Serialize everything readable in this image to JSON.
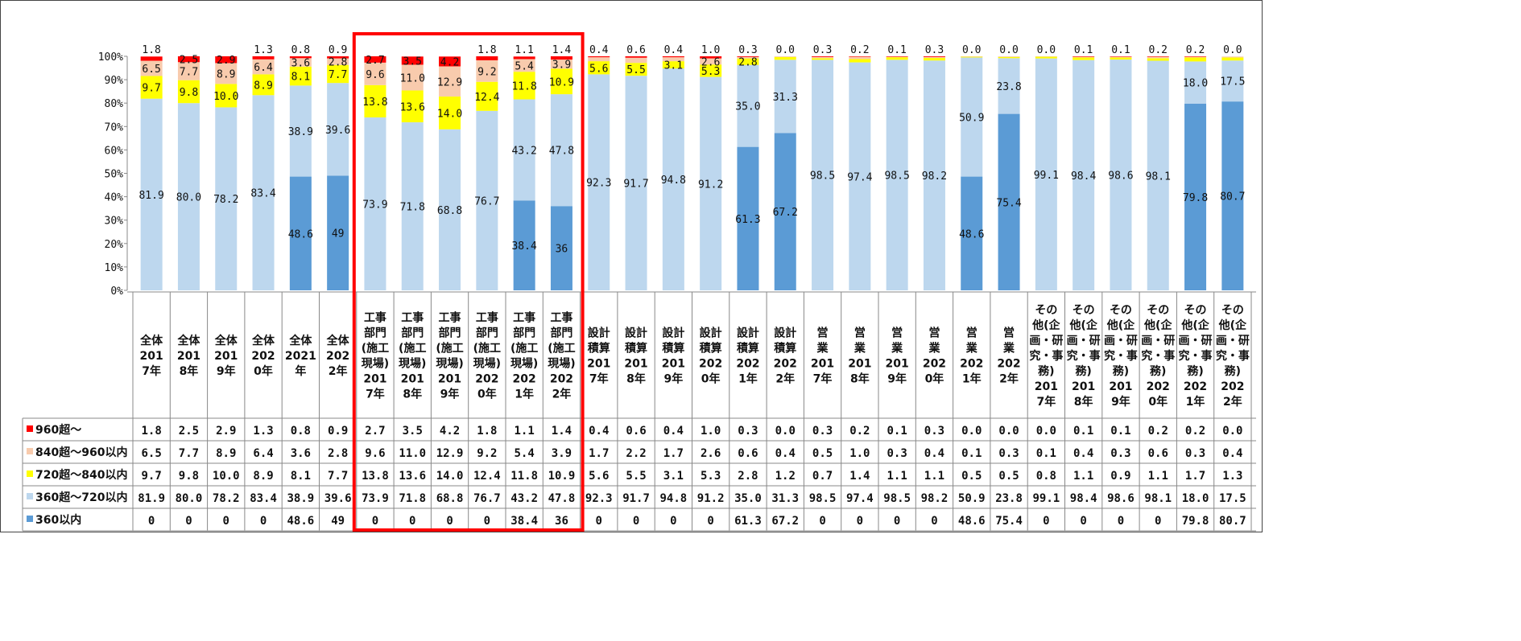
{
  "chart_data": {
    "type": "bar",
    "stacked": true,
    "percent_stacked": true,
    "ylim": [
      0,
      100
    ],
    "y_ticks": [
      "0%",
      "10%",
      "20%",
      "30%",
      "40%",
      "50%",
      "60%",
      "70%",
      "80%",
      "90%",
      "100%"
    ],
    "grid": false,
    "legend": "data table below chart",
    "categories": [
      [
        "全体",
        "201",
        "7年"
      ],
      [
        "全体",
        "201",
        "8年"
      ],
      [
        "全体",
        "201",
        "9年"
      ],
      [
        "全体",
        "202",
        "0年"
      ],
      [
        "全体",
        "2021",
        "年"
      ],
      [
        "全体",
        "202",
        "2年"
      ],
      [
        "工事",
        "部門",
        "(施工",
        "現場)",
        "201",
        "7年"
      ],
      [
        "工事",
        "部門",
        "(施工",
        "現場)",
        "201",
        "8年"
      ],
      [
        "工事",
        "部門",
        "(施工",
        "現場)",
        "201",
        "9年"
      ],
      [
        "工事",
        "部門",
        "(施工",
        "現場)",
        "202",
        "0年"
      ],
      [
        "工事",
        "部門",
        "(施工",
        "現場)",
        "202",
        "1年"
      ],
      [
        "工事",
        "部門",
        "(施工",
        "現場)",
        "202",
        "2年"
      ],
      [
        "設計",
        "積算",
        "201",
        "7年"
      ],
      [
        "設計",
        "積算",
        "201",
        "8年"
      ],
      [
        "設計",
        "積算",
        "201",
        "9年"
      ],
      [
        "設計",
        "積算",
        "202",
        "0年"
      ],
      [
        "設計",
        "積算",
        "202",
        "1年"
      ],
      [
        "設計",
        "積算",
        "202",
        "2年"
      ],
      [
        "営",
        "業",
        "201",
        "7年"
      ],
      [
        "営",
        "業",
        "201",
        "8年"
      ],
      [
        "営",
        "業",
        "201",
        "9年"
      ],
      [
        "営",
        "業",
        "202",
        "0年"
      ],
      [
        "営",
        "業",
        "202",
        "1年"
      ],
      [
        "営",
        "業",
        "202",
        "2年"
      ],
      [
        "その",
        "他(企",
        "画・研",
        "究・事",
        "務)",
        "201",
        "7年"
      ],
      [
        "その",
        "他(企",
        "画・研",
        "究・事",
        "務)",
        "201",
        "8年"
      ],
      [
        "その",
        "他(企",
        "画・研",
        "究・事",
        "務)",
        "201",
        "9年"
      ],
      [
        "その",
        "他(企",
        "画・研",
        "究・事",
        "務)",
        "202",
        "0年"
      ],
      [
        "その",
        "他(企",
        "画・研",
        "究・事",
        "務)",
        "202",
        "1年"
      ],
      [
        "その",
        "他(企",
        "画・研",
        "究・事",
        "務)",
        "202",
        "2年"
      ]
    ],
    "series": [
      {
        "name": "360以内",
        "color": "#5b9bd5",
        "values": [
          0,
          0,
          0,
          0,
          48.6,
          49,
          0,
          0,
          0,
          0,
          38.4,
          36,
          0,
          0,
          0,
          0,
          61.3,
          67.2,
          0,
          0,
          0,
          0,
          48.6,
          75.4,
          0,
          0,
          0,
          0,
          79.8,
          80.7
        ],
        "labels": [
          "0",
          "0",
          "0",
          "0",
          "48.6",
          "49",
          "0",
          "0",
          "0",
          "0",
          "38.4",
          "36",
          "0",
          "0",
          "0",
          "0",
          "61.3",
          "67.2",
          "0",
          "0",
          "0",
          "0",
          "48.6",
          "75.4",
          "0",
          "0",
          "0",
          "0",
          "79.8",
          "80.7"
        ]
      },
      {
        "name": "360超～720以内",
        "color": "#bdd7ee",
        "values": [
          81.9,
          80.0,
          78.2,
          83.4,
          38.9,
          39.6,
          73.9,
          71.8,
          68.8,
          76.7,
          43.2,
          47.8,
          92.3,
          91.7,
          94.8,
          91.2,
          35.0,
          31.3,
          98.5,
          97.4,
          98.5,
          98.2,
          50.9,
          23.8,
          99.1,
          98.4,
          98.6,
          98.1,
          18.0,
          17.5
        ],
        "labels": [
          "81.9",
          "80.0",
          "78.2",
          "83.4",
          "38.9",
          "39.6",
          "73.9",
          "71.8",
          "68.8",
          "76.7",
          "43.2",
          "47.8",
          "92.3",
          "91.7",
          "94.8",
          "91.2",
          "35.0",
          "31.3",
          "98.5",
          "97.4",
          "98.5",
          "98.2",
          "50.9",
          "23.8",
          "99.1",
          "98.4",
          "98.6",
          "98.1",
          "18.0",
          "17.5"
        ]
      },
      {
        "name": "720超～840以内",
        "color": "#ffff00",
        "values": [
          9.7,
          9.8,
          10.0,
          8.9,
          8.1,
          7.7,
          13.8,
          13.6,
          14.0,
          12.4,
          11.8,
          10.9,
          5.6,
          5.5,
          3.1,
          5.3,
          2.8,
          1.2,
          0.7,
          1.4,
          1.1,
          1.1,
          0.5,
          0.5,
          0.8,
          1.1,
          0.9,
          1.1,
          1.7,
          1.3
        ],
        "labels": [
          "9.7",
          "9.8",
          "10.0",
          "8.9",
          "8.1",
          "7.7",
          "13.8",
          "13.6",
          "14.0",
          "12.4",
          "11.8",
          "10.9",
          "5.6",
          "5.5",
          "3.1",
          "5.3",
          "2.8",
          "1.2",
          "0.7",
          "1.4",
          "1.1",
          "1.1",
          "0.5",
          "0.5",
          "0.8",
          "1.1",
          "0.9",
          "1.1",
          "1.7",
          "1.3"
        ]
      },
      {
        "name": "840超～960以内",
        "color": "#f8cbad",
        "values": [
          6.5,
          7.7,
          8.9,
          6.4,
          3.6,
          2.8,
          9.6,
          11.0,
          12.9,
          9.2,
          5.4,
          3.9,
          1.7,
          2.2,
          1.7,
          2.6,
          0.6,
          0.4,
          0.5,
          1.0,
          0.3,
          0.4,
          0.1,
          0.3,
          0.1,
          0.4,
          0.3,
          0.6,
          0.3,
          0.4
        ],
        "labels": [
          "6.5",
          "7.7",
          "8.9",
          "6.4",
          "3.6",
          "2.8",
          "9.6",
          "11.0",
          "12.9",
          "9.2",
          "5.4",
          "3.9",
          "1.7",
          "2.2",
          "1.7",
          "2.6",
          "0.6",
          "0.4",
          "0.5",
          "1.0",
          "0.3",
          "0.4",
          "0.1",
          "0.3",
          "0.1",
          "0.4",
          "0.3",
          "0.6",
          "0.3",
          "0.4"
        ]
      },
      {
        "name": "960超～",
        "color": "#ff0000",
        "values": [
          1.8,
          2.5,
          2.9,
          1.3,
          0.8,
          0.9,
          2.7,
          3.5,
          4.2,
          1.8,
          1.1,
          1.4,
          0.4,
          0.6,
          0.4,
          1.0,
          0.3,
          0.0,
          0.3,
          0.2,
          0.1,
          0.3,
          0.0,
          0.0,
          0.0,
          0.1,
          0.1,
          0.2,
          0.2,
          0.0
        ],
        "labels": [
          "1.8",
          "2.5",
          "2.9",
          "1.3",
          "0.8",
          "0.9",
          "2.7",
          "3.5",
          "4.2",
          "1.8",
          "1.1",
          "1.4",
          "0.4",
          "0.6",
          "0.4",
          "1.0",
          "0.3",
          "0.0",
          "0.3",
          "0.2",
          "0.1",
          "0.3",
          "0.0",
          "0.0",
          "0.0",
          "0.1",
          "0.1",
          "0.2",
          "0.2",
          "0.0"
        ]
      }
    ],
    "table_row_order": [
      4,
      3,
      2,
      1,
      0
    ],
    "highlight": {
      "start_index": 6,
      "end_index": 11,
      "color": "#ff0000"
    }
  }
}
